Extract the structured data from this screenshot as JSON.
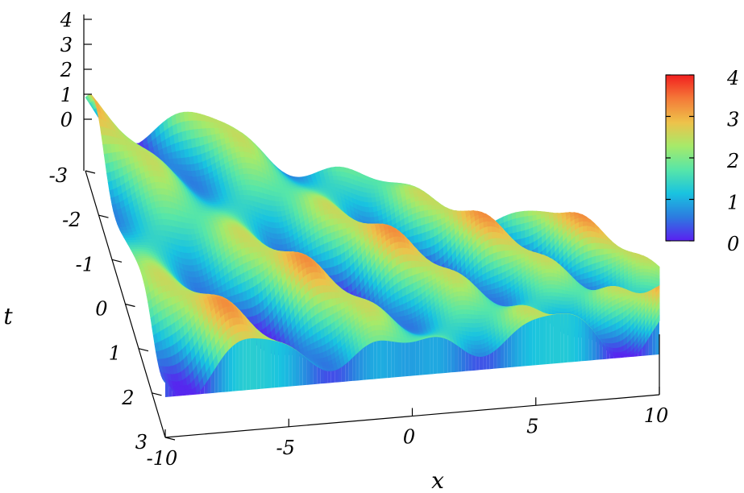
{
  "chart_data": {
    "type": "surface",
    "title": "",
    "xlabel": "x",
    "ylabel": "t",
    "zlabel": "",
    "xlim": [
      -10,
      10
    ],
    "ylim": [
      -3,
      3
    ],
    "zlim": [
      0,
      4
    ],
    "x_ticks": [
      -10,
      -5,
      0,
      5,
      10
    ],
    "y_ticks": [
      -3,
      -2,
      -1,
      0,
      1,
      2,
      3
    ],
    "z_ticks": [
      0,
      1,
      2,
      3,
      4
    ],
    "colorbar": {
      "min": 0,
      "max": 4,
      "ticks": [
        0,
        1,
        2,
        3,
        4
      ],
      "colormap": "rainbow"
    },
    "grid": false,
    "colormap_stops": [
      "#5a1ff0",
      "#2c7be0",
      "#19c3e0",
      "#57e6a8",
      "#a6ea6a",
      "#eec24a",
      "#f47a38",
      "#f21f1f"
    ]
  }
}
